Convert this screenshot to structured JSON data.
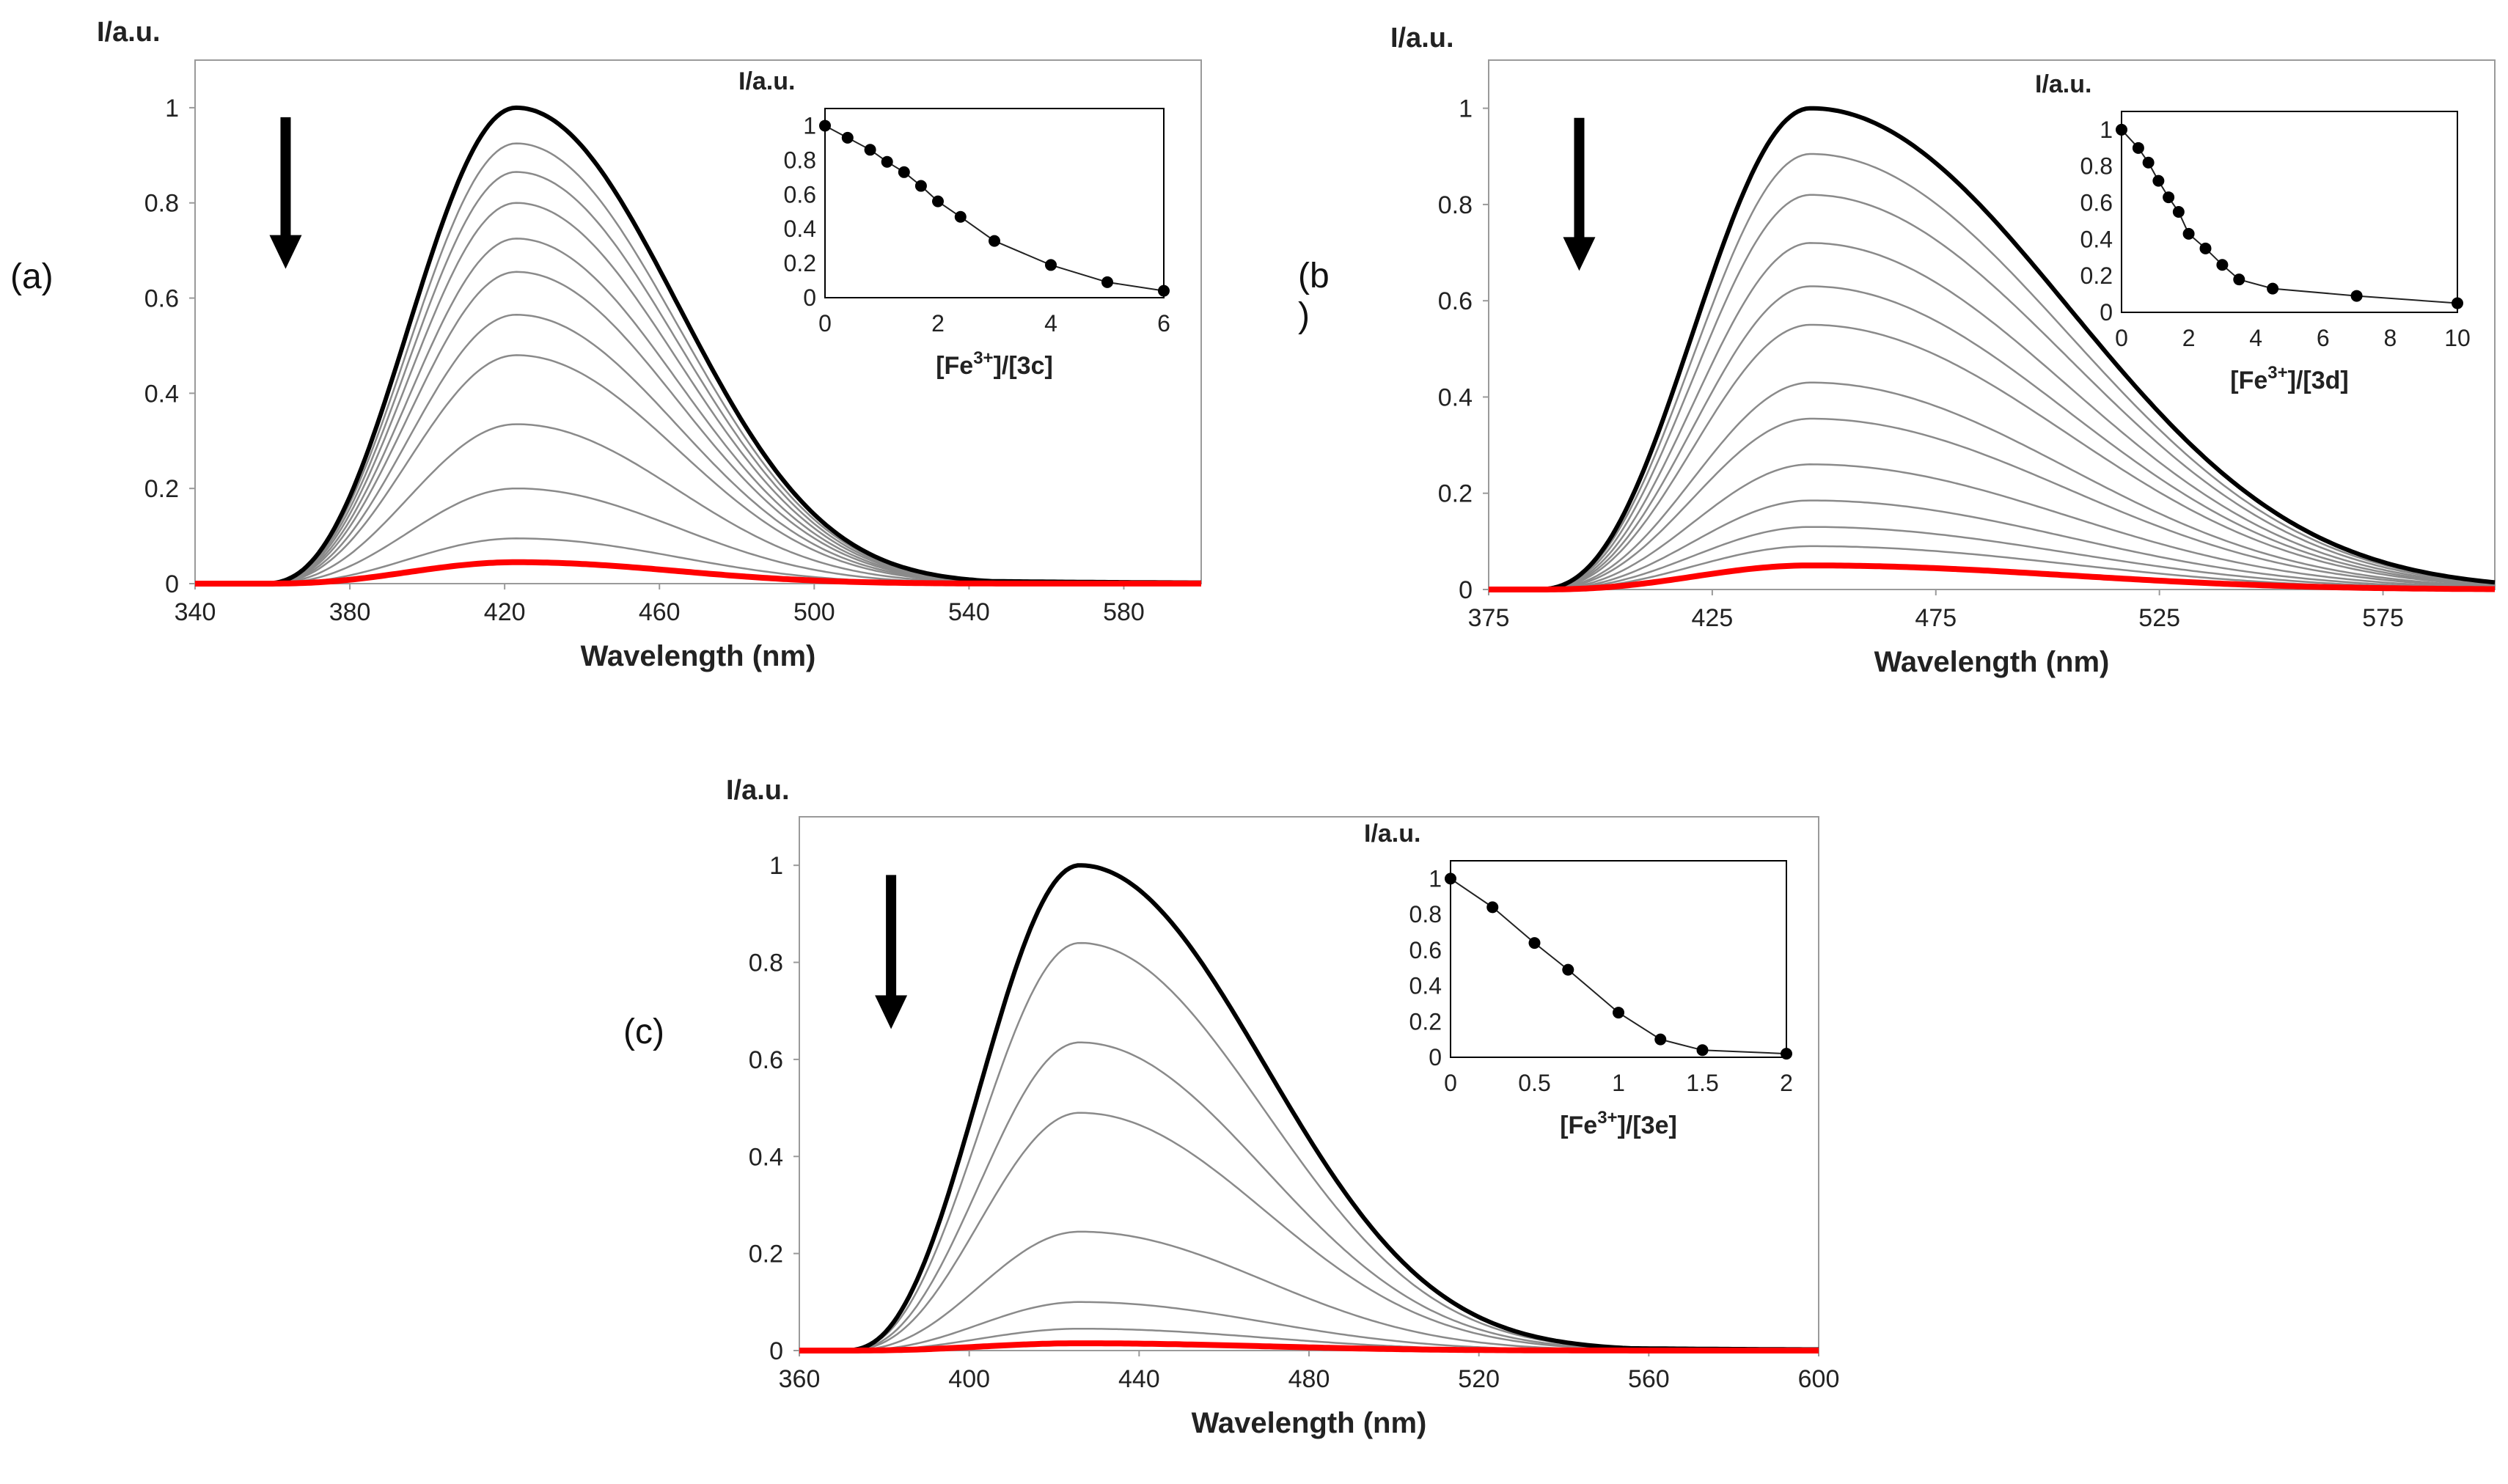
{
  "panels": [
    {
      "label": "(a)",
      "chart_data": {
        "type": "line",
        "xlabel": "Wavelength (nm)",
        "ylabel": "I/a.u.",
        "xlim": [
          340,
          600
        ],
        "ylim": [
          0,
          1.1
        ],
        "xticks": [
          340,
          380,
          420,
          460,
          500,
          540,
          580
        ],
        "yticks": [
          0,
          0.2,
          0.4,
          0.6,
          0.8,
          1
        ],
        "spectra": {
          "peak_nm": 423,
          "onset_nm": 357,
          "tail_width_nm": 42,
          "first_color": "#000000",
          "middle_color": "#8a8a8a",
          "last_color": "#ff0000",
          "peak_intensities": [
            1.0,
            0.925,
            0.865,
            0.8,
            0.725,
            0.655,
            0.565,
            0.48,
            0.335,
            0.2,
            0.095,
            0.045
          ]
        },
        "arrow": "down",
        "inset": {
          "type": "line",
          "xlabel": "[Fe3+]/[3c]",
          "xlabel_parts": [
            "[Fe",
            "3+",
            "]/[3c]"
          ],
          "ylabel": "I/a.u.",
          "xlim": [
            0,
            6
          ],
          "ylim": [
            0,
            1.1
          ],
          "xticks": [
            0,
            2,
            4,
            6
          ],
          "yticks": [
            0,
            0.2,
            0.4,
            0.6,
            0.8,
            1
          ],
          "x": [
            0,
            0.4,
            0.8,
            1.1,
            1.4,
            1.7,
            2.0,
            2.4,
            3.0,
            4.0,
            5.0,
            6.0
          ],
          "y": [
            1.0,
            0.93,
            0.86,
            0.79,
            0.73,
            0.65,
            0.56,
            0.47,
            0.33,
            0.19,
            0.09,
            0.04
          ]
        }
      }
    },
    {
      "label": "(b\n)",
      "chart_data": {
        "type": "line",
        "xlabel": "Wavelength (nm)",
        "ylabel": "I/a.u.",
        "xlim": [
          375,
          600
        ],
        "ylim": [
          0,
          1.1
        ],
        "xticks": [
          375,
          425,
          475,
          525,
          575
        ],
        "yticks": [
          0,
          0.2,
          0.4,
          0.6,
          0.8,
          1
        ],
        "spectra": {
          "peak_nm": 447,
          "onset_nm": 385,
          "tail_width_nm": 58,
          "first_color": "#000000",
          "middle_color": "#8a8a8a",
          "last_color": "#ff0000",
          "peak_intensities": [
            1.0,
            0.905,
            0.82,
            0.72,
            0.63,
            0.55,
            0.43,
            0.355,
            0.26,
            0.185,
            0.13,
            0.09,
            0.05
          ]
        },
        "arrow": "down",
        "inset": {
          "type": "line",
          "xlabel": "[Fe3+]/[3d]",
          "xlabel_parts": [
            "[Fe",
            "3+",
            "]/[3d]"
          ],
          "ylabel": "I/a.u.",
          "xlim": [
            0,
            10
          ],
          "ylim": [
            0,
            1.1
          ],
          "xticks": [
            0,
            2,
            4,
            6,
            8,
            10
          ],
          "yticks": [
            0,
            0.2,
            0.4,
            0.6,
            0.8,
            1
          ],
          "x": [
            0,
            0.5,
            0.8,
            1.1,
            1.4,
            1.7,
            2.0,
            2.5,
            3.0,
            3.5,
            4.5,
            7.0,
            10.0
          ],
          "y": [
            1.0,
            0.9,
            0.82,
            0.72,
            0.63,
            0.55,
            0.43,
            0.35,
            0.26,
            0.18,
            0.13,
            0.09,
            0.05
          ]
        }
      }
    },
    {
      "label": "(c)",
      "chart_data": {
        "type": "line",
        "xlabel": "Wavelength (nm)",
        "ylabel": "I/a.u.",
        "xlim": [
          360,
          600
        ],
        "ylim": [
          0,
          1.1
        ],
        "xticks": [
          360,
          400,
          440,
          480,
          520,
          560,
          600
        ],
        "yticks": [
          0,
          0.2,
          0.4,
          0.6,
          0.8,
          1
        ],
        "spectra": {
          "peak_nm": 426,
          "onset_nm": 370,
          "tail_width_nm": 44,
          "first_color": "#000000",
          "middle_color": "#8a8a8a",
          "last_color": "#ff0000",
          "peak_intensities": [
            1.0,
            0.84,
            0.635,
            0.49,
            0.245,
            0.1,
            0.045,
            0.015
          ]
        },
        "arrow": "down",
        "inset": {
          "type": "line",
          "xlabel": "[Fe3+]/[3e]",
          "xlabel_parts": [
            "[Fe",
            "3+",
            "]/[3e]"
          ],
          "ylabel": "I/a.u.",
          "xlim": [
            0,
            2
          ],
          "ylim": [
            0,
            1.1
          ],
          "xticks": [
            0,
            0.5,
            1,
            1.5,
            2
          ],
          "yticks": [
            0,
            0.2,
            0.4,
            0.6,
            0.8,
            1
          ],
          "x": [
            0,
            0.25,
            0.5,
            0.7,
            1.0,
            1.25,
            1.5,
            2.0
          ],
          "y": [
            1.0,
            0.84,
            0.64,
            0.49,
            0.25,
            0.1,
            0.04,
            0.02
          ]
        }
      }
    }
  ]
}
